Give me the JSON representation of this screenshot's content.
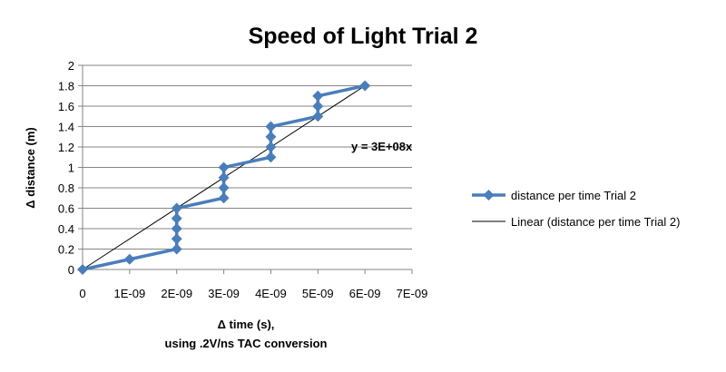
{
  "chart_data": {
    "type": "scatter",
    "title": "Speed of Light Trial 2",
    "xlabel": "Δ time (s),",
    "xlabel_line2": "using .2V/ns TAC conversion",
    "ylabel": "Δ distance (m)",
    "xlim": [
      0,
      7e-09
    ],
    "ylim": [
      0,
      2
    ],
    "xticks": [
      0,
      1e-09,
      2e-09,
      3e-09,
      4e-09,
      5e-09,
      6e-09,
      7e-09
    ],
    "xtick_labels": [
      "0",
      "1E-09",
      "2E-09",
      "3E-09",
      "4E-09",
      "5E-09",
      "6E-09",
      "7E-09"
    ],
    "yticks": [
      0,
      0.2,
      0.4,
      0.6,
      0.8,
      1,
      1.2,
      1.4,
      1.6,
      1.8,
      2
    ],
    "ytick_labels": [
      "0",
      "0.2",
      "0.4",
      "0.6",
      "0.8",
      "1",
      "1.2",
      "1.4",
      "1.6",
      "1.8",
      "2"
    ],
    "grid": "horizontal",
    "legend_position": "right",
    "series": [
      {
        "name": "distance per time Trial 2",
        "color": "#4a7ebb",
        "marker": "diamond",
        "x": [
          0,
          1e-09,
          2e-09,
          2e-09,
          2e-09,
          2e-09,
          2e-09,
          3e-09,
          3e-09,
          3e-09,
          3e-09,
          4e-09,
          4e-09,
          4e-09,
          4e-09,
          5e-09,
          5e-09,
          5e-09,
          6e-09
        ],
        "y": [
          0,
          0.1,
          0.2,
          0.3,
          0.4,
          0.5,
          0.6,
          0.7,
          0.8,
          0.9,
          1.0,
          1.1,
          1.2,
          1.3,
          1.4,
          1.5,
          1.6,
          1.7,
          1.8
        ]
      }
    ],
    "trendline": {
      "name": "Linear (distance per time Trial 2)",
      "color": "#000000",
      "slope": 300000000.0,
      "equation": "y = 3E+08x"
    }
  }
}
